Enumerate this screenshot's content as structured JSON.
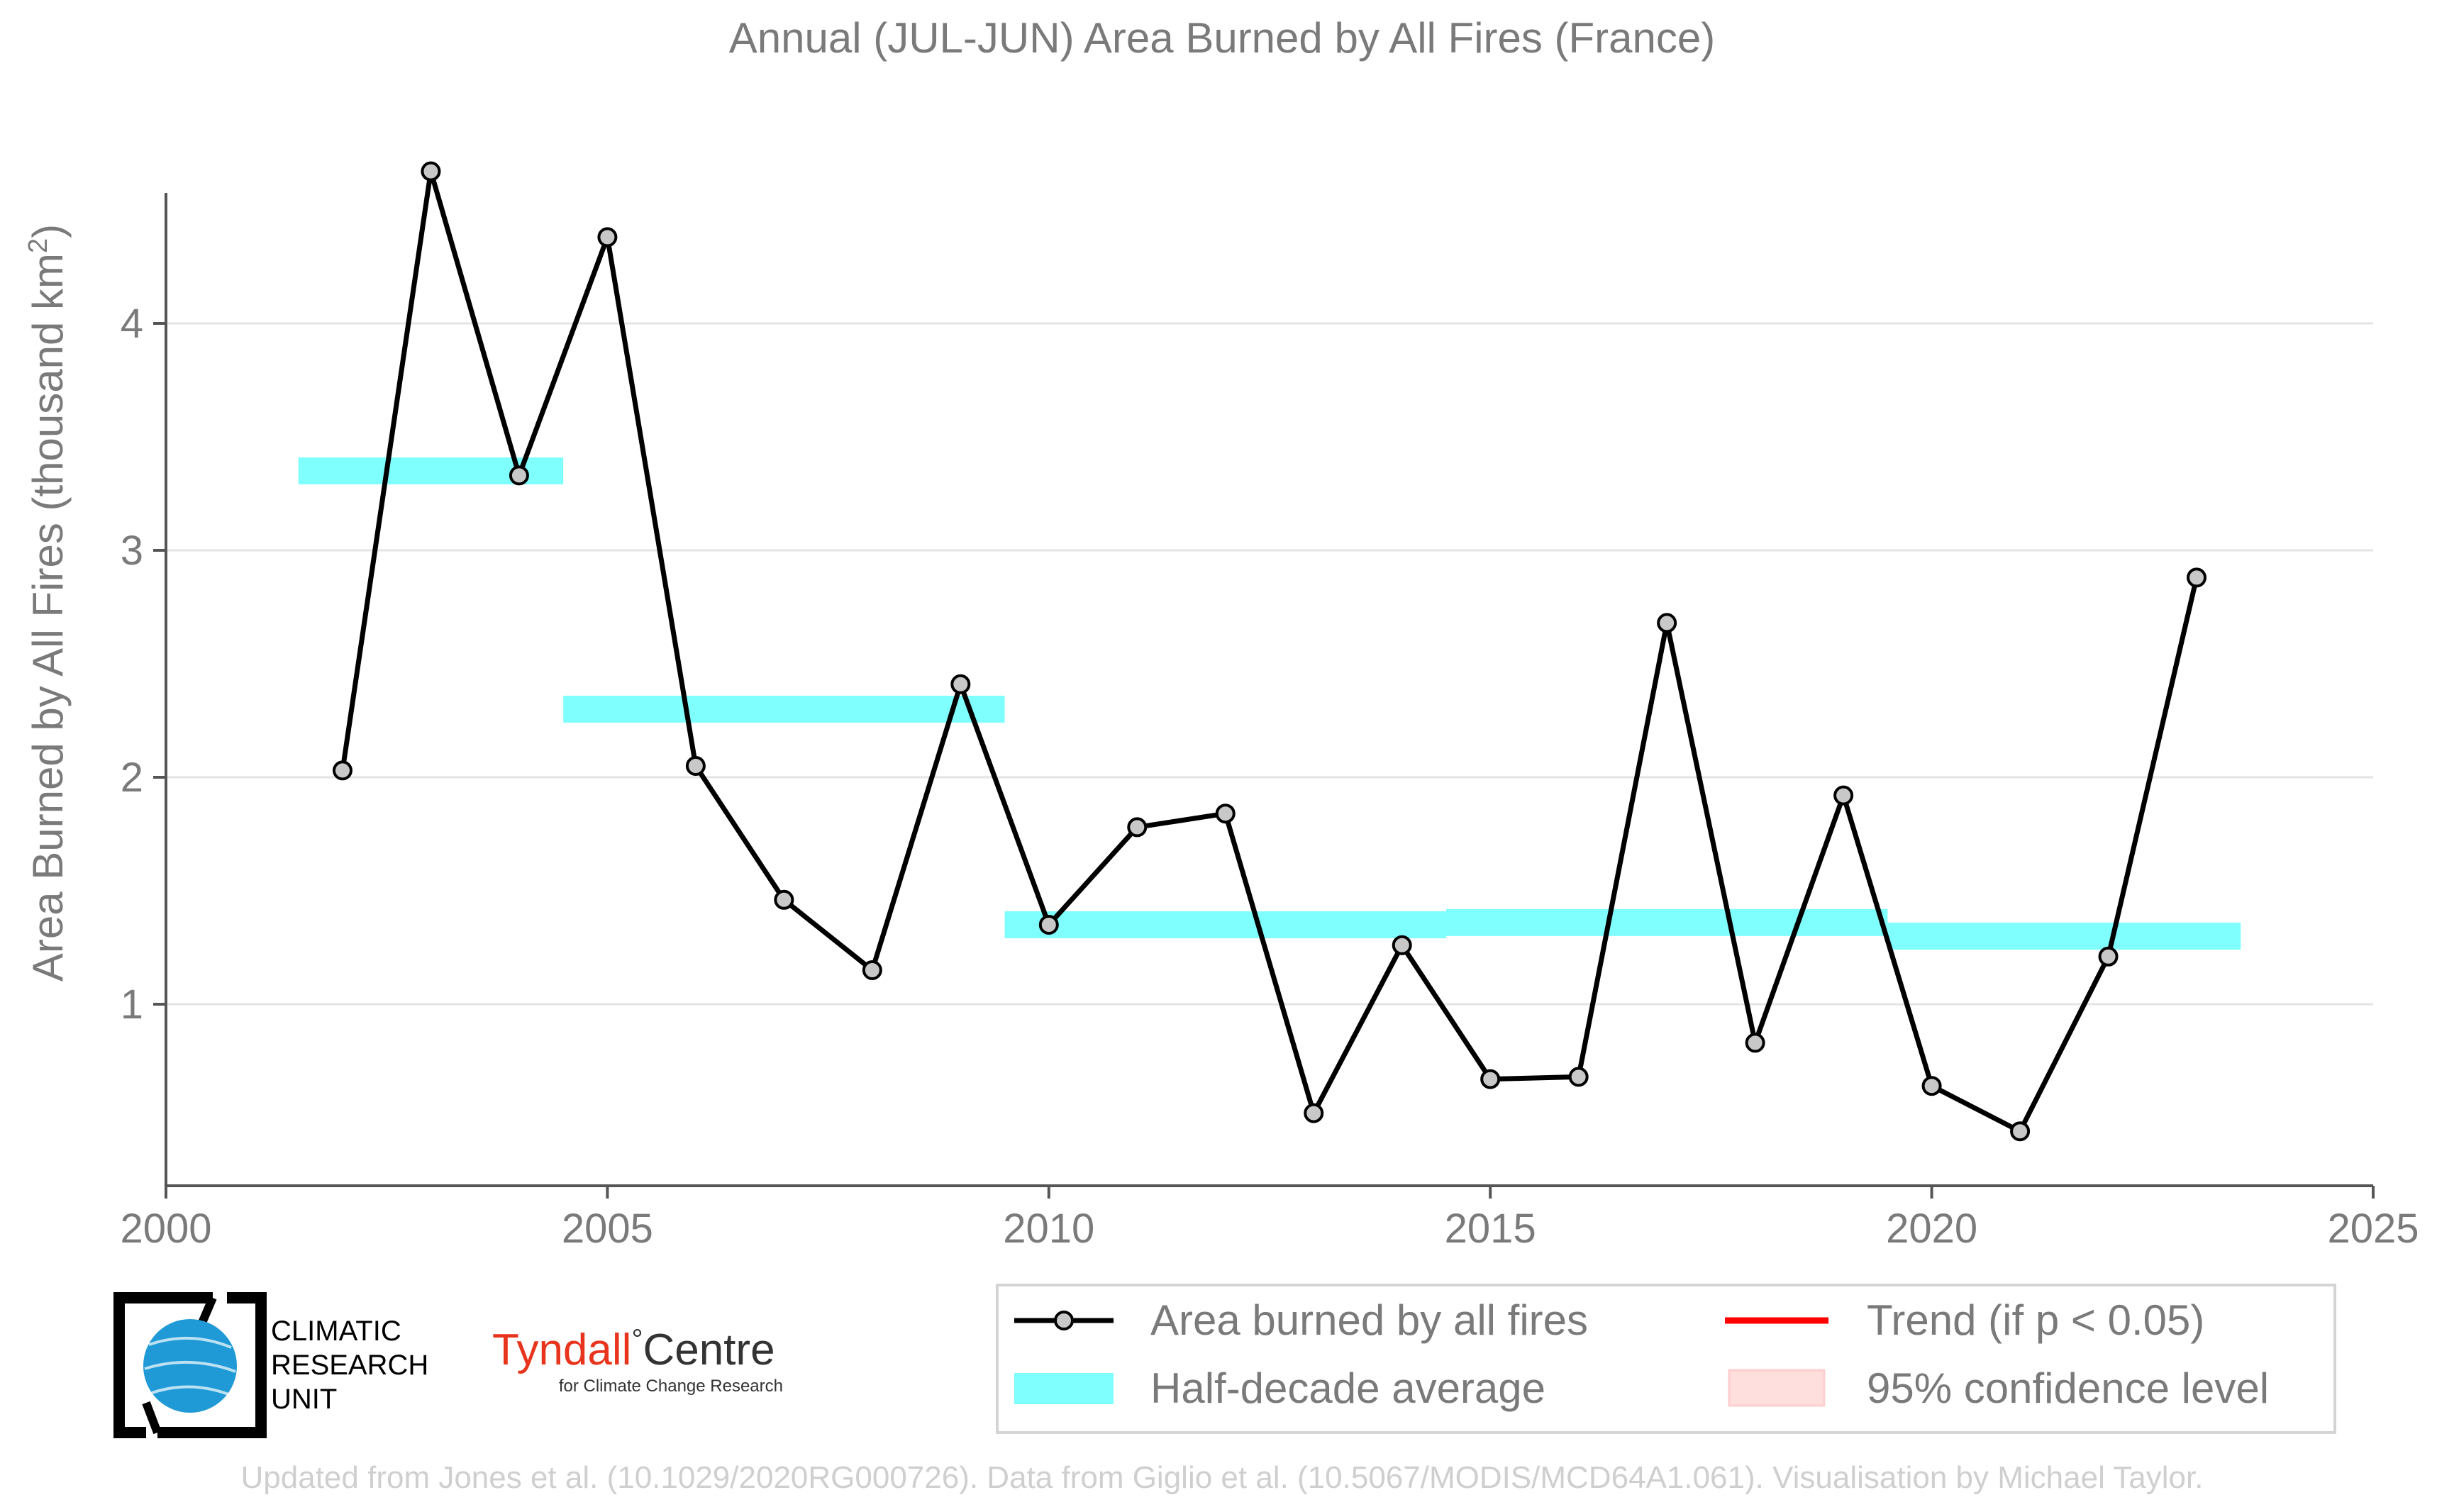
{
  "chart_data": {
    "type": "line",
    "title": "Annual (JUL-JUN) Area Burned by All Fires (France)",
    "ylabel": "Area Burned by All Fires (thousand km",
    "ylabel_sup": "2",
    "ylabel_close": ")",
    "xlim": [
      2000,
      2025
    ],
    "ylim": [
      0.2,
      4.95
    ],
    "x_ticks": [
      2000,
      2005,
      2010,
      2015,
      2020,
      2025
    ],
    "y_ticks": [
      1,
      2,
      3,
      4
    ],
    "grid": "horizontal",
    "legend_placement": "bottom-right",
    "series": [
      {
        "name": "Area burned by all fires",
        "color": "#000000",
        "marker_color": "#c8c8c8",
        "x": [
          2002,
          2003,
          2004,
          2005,
          2006,
          2007,
          2008,
          2009,
          2010,
          2011,
          2012,
          2013,
          2014,
          2015,
          2016,
          2017,
          2018,
          2019,
          2020,
          2021,
          2022,
          2023
        ],
        "y": [
          2.03,
          4.67,
          3.33,
          4.38,
          2.05,
          1.46,
          1.15,
          2.41,
          1.35,
          1.78,
          1.84,
          0.52,
          1.26,
          0.67,
          0.68,
          2.68,
          0.83,
          1.92,
          0.64,
          0.44,
          1.21,
          2.88
        ]
      }
    ],
    "half_decade_average": {
      "name": "Half-decade average",
      "color": "#80ffff",
      "segments": [
        {
          "x_start": 2001.5,
          "x_end": 2004.5,
          "value": 3.35
        },
        {
          "x_start": 2004.5,
          "x_end": 2009.5,
          "value": 2.3
        },
        {
          "x_start": 2009.5,
          "x_end": 2014.5,
          "value": 1.35
        },
        {
          "x_start": 2014.5,
          "x_end": 2019.5,
          "value": 1.36
        },
        {
          "x_start": 2019.5,
          "x_end": 2023.5,
          "value": 1.3
        }
      ]
    },
    "legend": [
      {
        "label": "Area burned by all fires",
        "kind": "line-marker",
        "color": "#000000"
      },
      {
        "label": "Trend (if p < 0.05)",
        "kind": "line",
        "color": "#ff0000"
      },
      {
        "label": "Half-decade average",
        "kind": "patch",
        "color": "#80ffff"
      },
      {
        "label": "95% confidence level",
        "kind": "patch",
        "color": "#ffdede"
      }
    ]
  },
  "logos": {
    "cru_lines": [
      "CLIMATIC",
      "RESEARCH",
      "UNIT"
    ],
    "tyndall_main": "Tyndall",
    "tyndall_degree": "°",
    "tyndall_centre": "Centre",
    "tyndall_sub": "for Climate Change Research",
    "tyndall_color": "#e8341c",
    "cru_globe_color": "#1f9ad6"
  },
  "footer": "Updated from Jones et al. (10.1029/2020RG000726). Data from Giglio et al. (10.5067/MODIS/MCD64A1.061). Visualisation by Michael Taylor."
}
